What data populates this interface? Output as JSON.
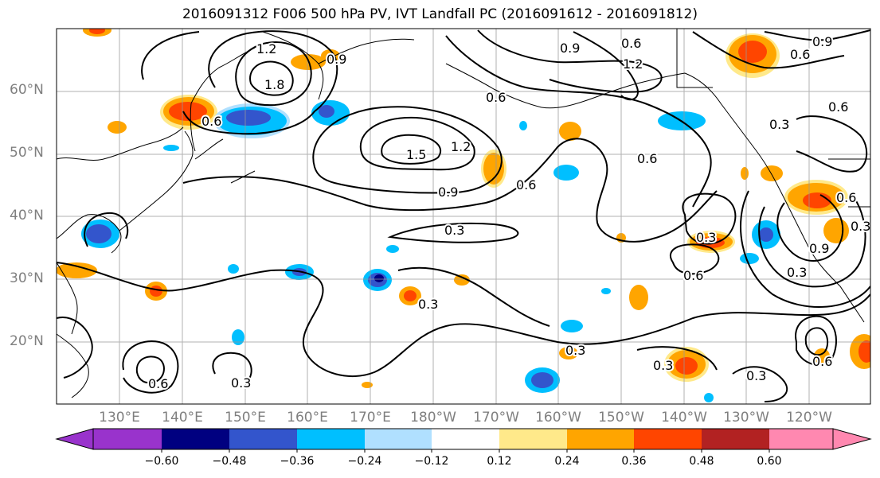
{
  "title": "2016091312 F006 500 hPa PV, IVT Landfall PC (2016091612 - 2016091812)",
  "lat_labels": [
    "60°N",
    "50°N",
    "40°N",
    "30°N",
    "20°N"
  ],
  "lon_labels": [
    "130°E",
    "140°E",
    "150°E",
    "160°E",
    "170°E",
    "180°W",
    "170°W",
    "160°W",
    "150°W",
    "140°W",
    "130°W",
    "120°W"
  ],
  "contour_labels": {
    "c1": "1.2",
    "c2": "1.8",
    "c3": "0.9",
    "c4": "0.6",
    "c5": "0.9",
    "c6": "1.2",
    "c7": "0.6",
    "c8": "0.9",
    "c9": "0.6",
    "c10": "0.6",
    "c11": "1.5",
    "c12": "1.2",
    "c13": "0.9",
    "c14": "0.6",
    "c15": "0.6",
    "c16": "0.3",
    "c17": "0.6",
    "c18": "0.9",
    "c19": "0.3",
    "c20": "0.6",
    "c21": "0.3",
    "c22": "0.3",
    "c23": "0.3",
    "c24": "0.3",
    "c25": "0.3",
    "c26": "0.3",
    "c27": "0.6",
    "c28": "0.3",
    "c29": "0.3",
    "c30": "0.6",
    "c31": "0.6"
  },
  "colorbar": {
    "tick_labels": [
      "−0.60",
      "−0.48",
      "−0.36",
      "−0.24",
      "−0.12",
      "0.12",
      "0.24",
      "0.36",
      "0.48",
      "0.60"
    ],
    "colors": [
      "#9933cc",
      "#000080",
      "#3355cc",
      "#00bfff",
      "#b0e0ff",
      "#ffffff",
      "#ffe98a",
      "#ffa500",
      "#ff4500",
      "#b22222",
      "#ff88b0"
    ]
  },
  "colors": {
    "neg_strong": "#3355cc",
    "neg_darkest": "#000080",
    "neg_mid": "#00bfff",
    "neg_light": "#b0e0ff",
    "pos_light": "#ffe98a",
    "pos_mid": "#ffa500",
    "pos_strong": "#ff4500",
    "pos_darkest": "#b22222"
  }
}
